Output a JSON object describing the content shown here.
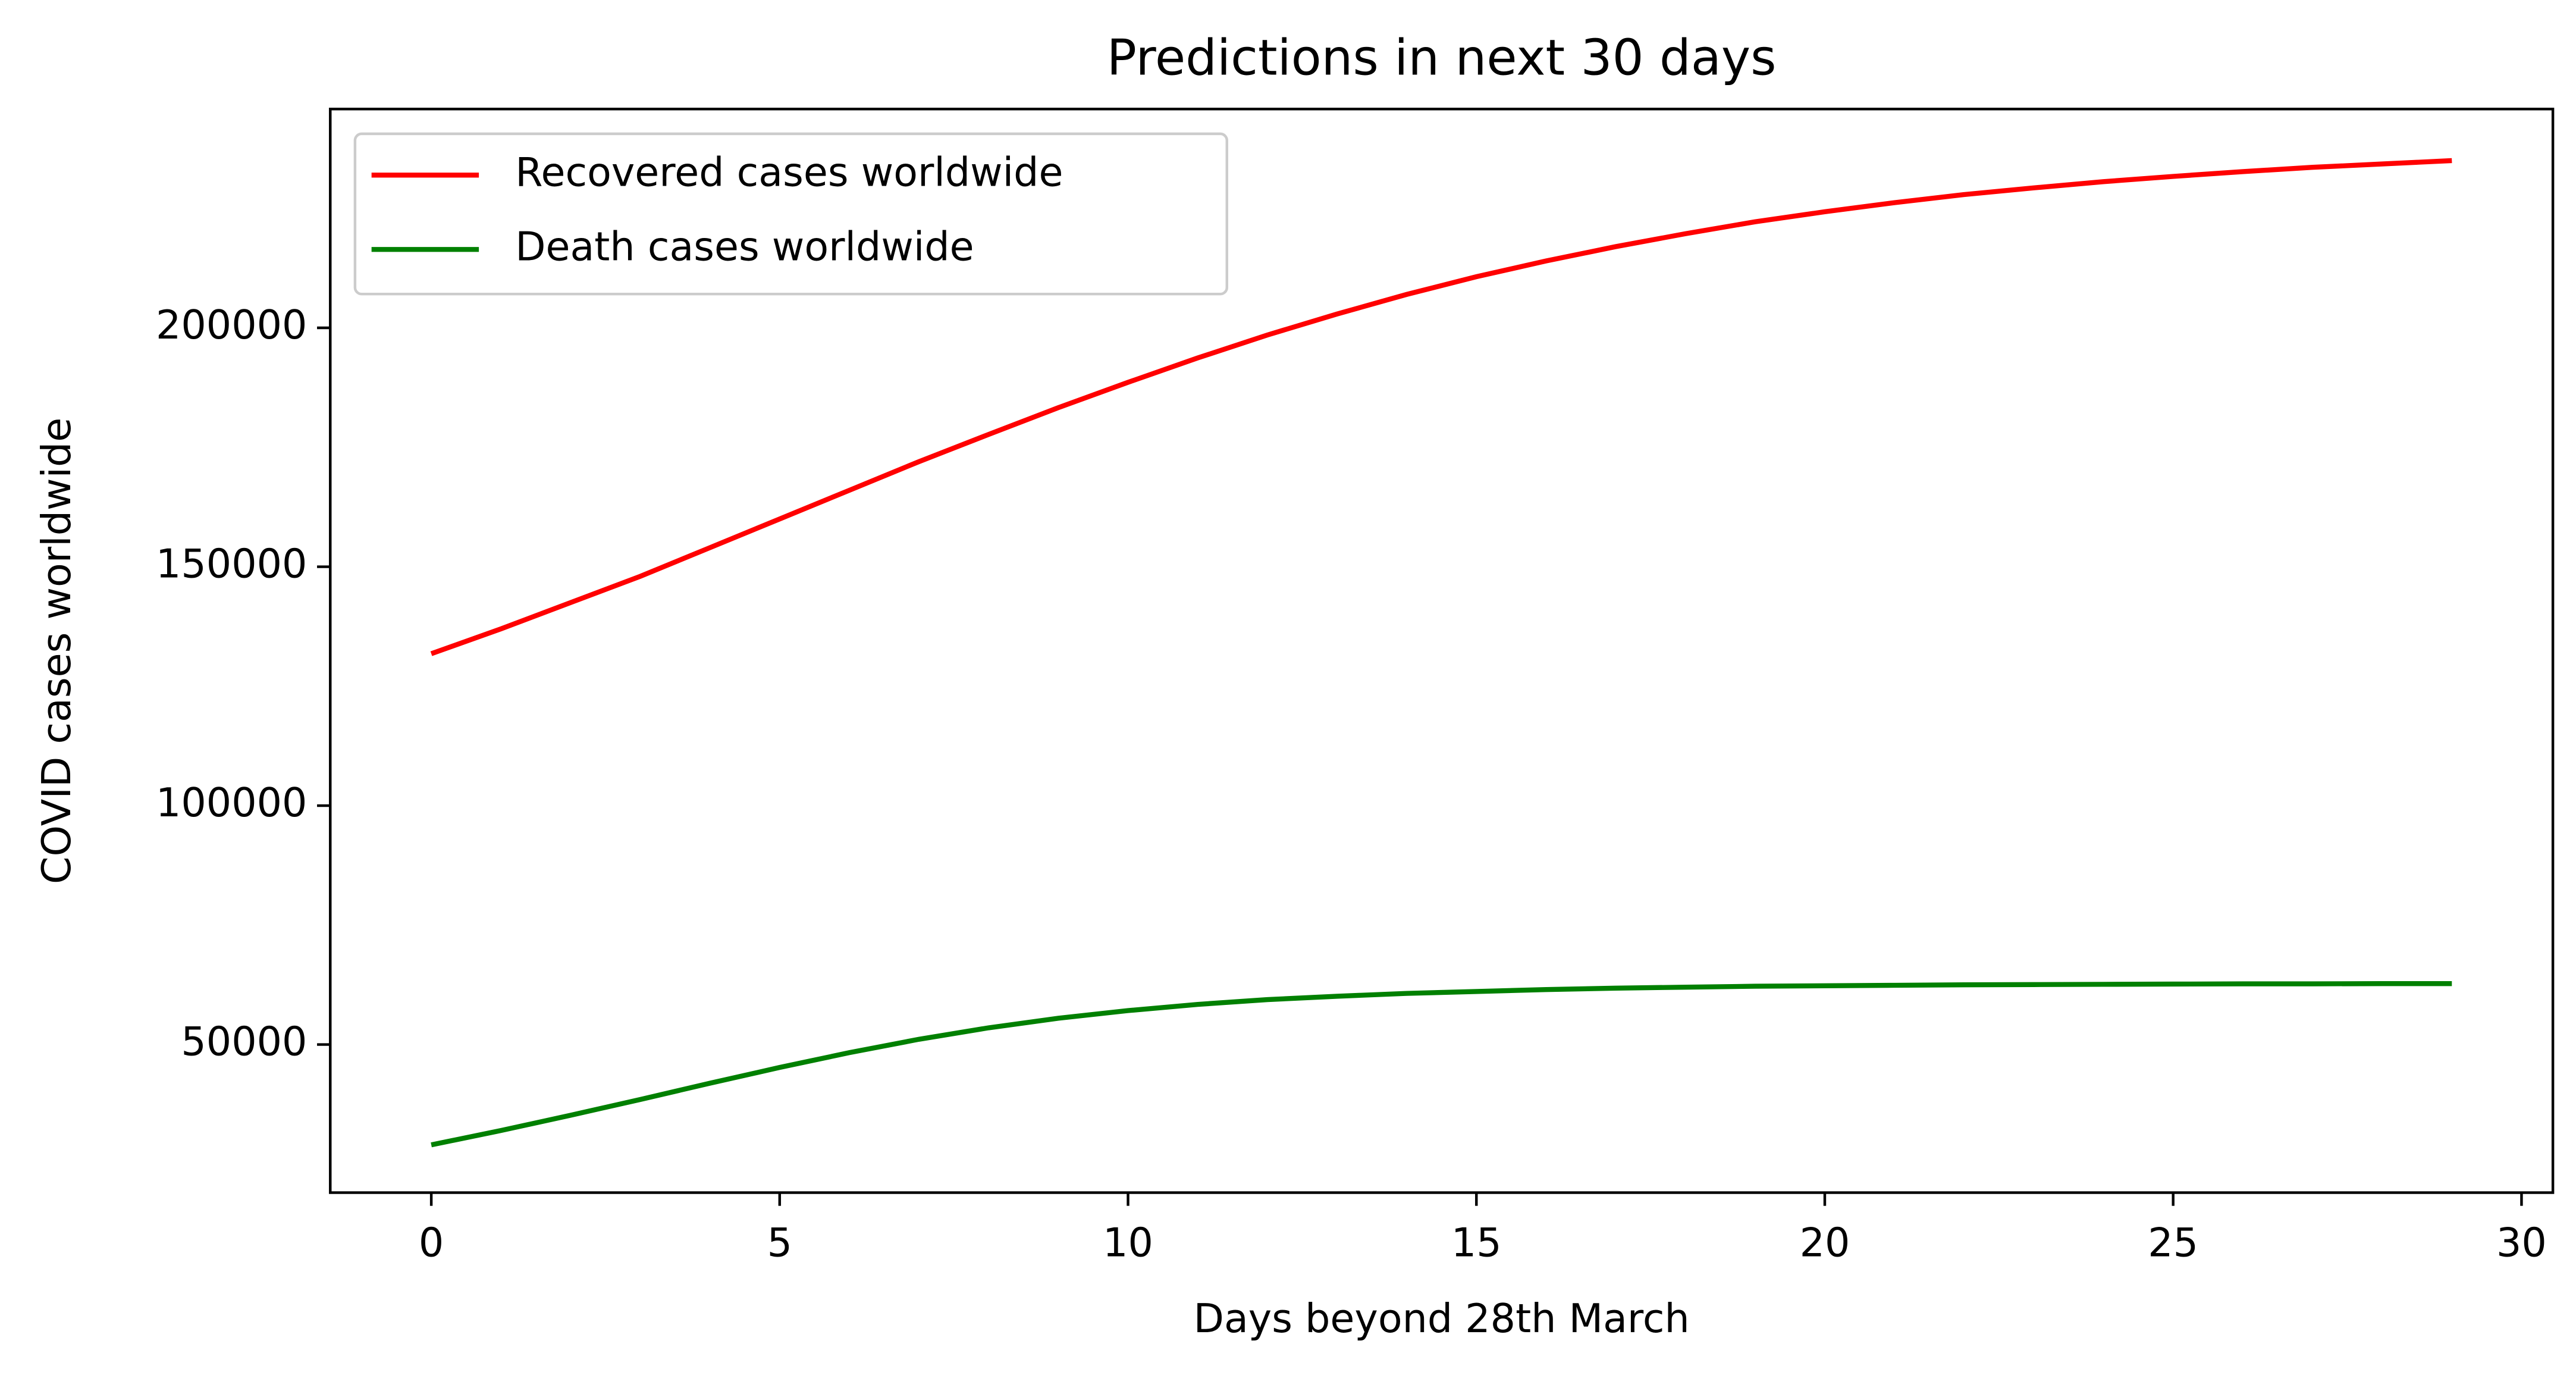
{
  "chart_data": {
    "type": "line",
    "title": "Predictions in next 30 days",
    "xlabel": "Days beyond 28th March",
    "ylabel": "COVID cases worldwide",
    "x": [
      0,
      1,
      2,
      3,
      4,
      5,
      6,
      7,
      8,
      9,
      10,
      11,
      12,
      13,
      14,
      15,
      16,
      17,
      18,
      19,
      20,
      21,
      22,
      23,
      24,
      25,
      26,
      27,
      28,
      29
    ],
    "series": [
      {
        "name": "Recovered cases worldwide",
        "color": "#ff0000",
        "values": [
          131800,
          137000,
          142500,
          148000,
          154000,
          160000,
          166000,
          172000,
          177700,
          183300,
          188600,
          193700,
          198500,
          202900,
          207000,
          210700,
          214000,
          217000,
          219700,
          222200,
          224300,
          226200,
          227900,
          229300,
          230600,
          231700,
          232700,
          233600,
          234300,
          235000
        ]
      },
      {
        "name": "Death cases worldwide",
        "color": "#008000",
        "values": [
          29000,
          32000,
          35200,
          38500,
          41900,
          45200,
          48300,
          51100,
          53500,
          55500,
          57100,
          58400,
          59400,
          60100,
          60700,
          61100,
          61500,
          61800,
          62000,
          62200,
          62300,
          62400,
          62500,
          62550,
          62600,
          62650,
          62700,
          62700,
          62750,
          62750
        ]
      }
    ],
    "xlim": [
      -1.45,
      30.45
    ],
    "xticks": [
      0,
      5,
      10,
      15,
      20,
      25,
      30
    ],
    "ylim": [
      19000,
      245800
    ],
    "yticks": [
      50000,
      100000,
      150000,
      200000
    ],
    "grid": false,
    "legend": "upper left"
  }
}
